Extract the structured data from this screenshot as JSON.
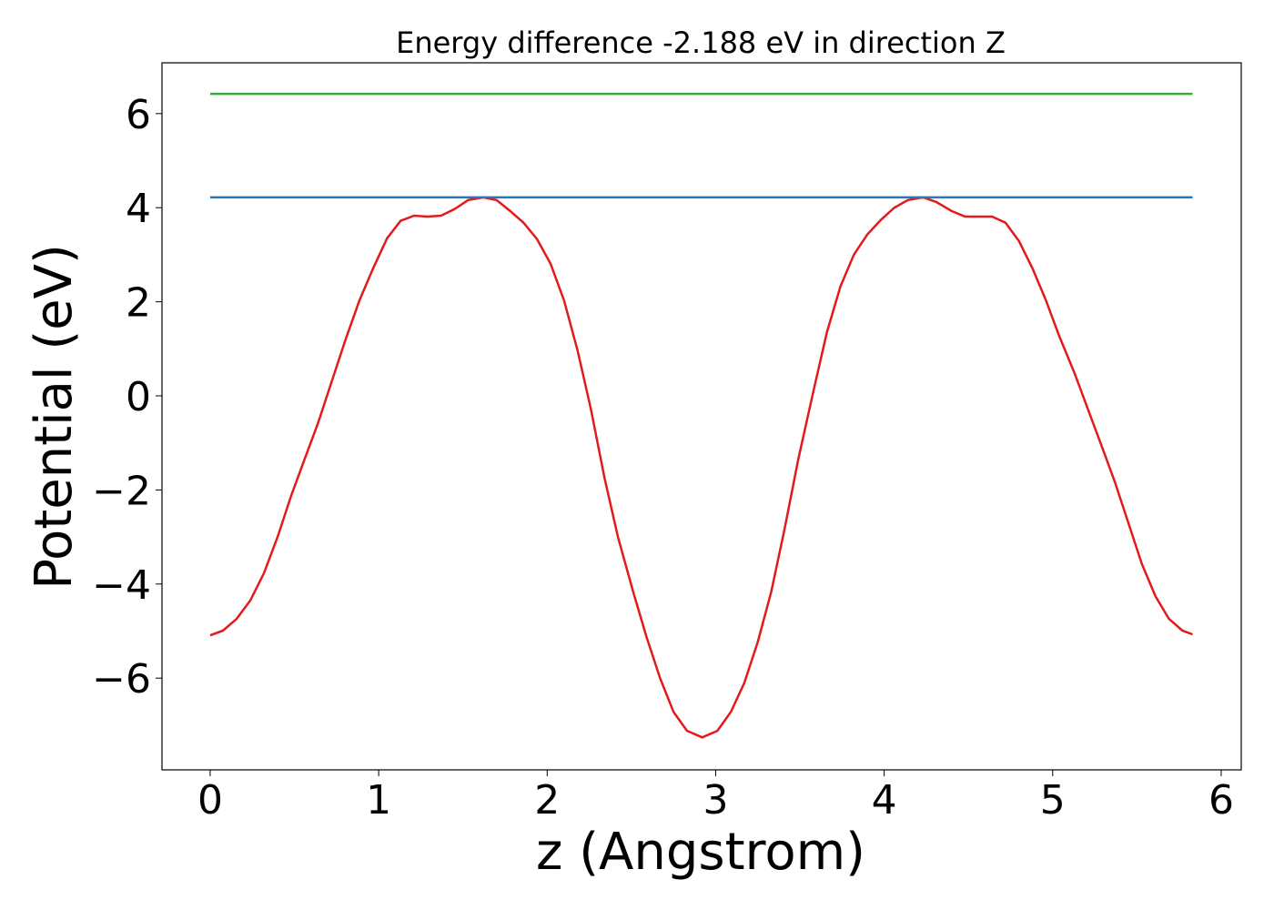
{
  "chart_data": {
    "type": "line",
    "title": "Energy difference -2.188 eV in direction Z",
    "xlabel": "z (Angstrom)",
    "ylabel": "Potential (eV)",
    "xlim": [
      -0.286,
      6.119
    ],
    "ylim": [
      -7.95,
      7.08
    ],
    "xticks": [
      0,
      1,
      2,
      3,
      4,
      5,
      6
    ],
    "yticks": [
      {
        "value": -6,
        "label": "−6"
      },
      {
        "value": -4,
        "label": "−4"
      },
      {
        "value": -2,
        "label": "−2"
      },
      0,
      2,
      4,
      6
    ],
    "series": [
      {
        "color": "#e31a1c",
        "x": [
          0,
          0.076,
          0.157,
          0.238,
          0.319,
          0.4,
          0.48,
          0.56,
          0.64,
          0.72,
          0.8,
          0.886,
          0.967,
          1.05,
          1.13,
          1.21,
          1.29,
          1.37,
          1.45,
          1.53,
          1.62,
          1.7,
          1.78,
          1.86,
          1.94,
          2.02,
          2.1,
          2.18,
          2.26,
          2.34,
          2.42,
          2.51,
          2.59,
          2.67,
          2.75,
          2.83,
          2.92,
          3.01,
          3.09,
          3.17,
          3.25,
          3.33,
          3.41,
          3.49,
          3.58,
          3.66,
          3.74,
          3.82,
          3.9,
          3.98,
          4.06,
          4.14,
          4.23,
          4.31,
          4.4,
          4.48,
          4.56,
          4.64,
          4.72,
          4.8,
          4.88,
          4.96,
          5.04,
          5.13,
          5.21,
          5.29,
          5.37,
          5.45,
          5.53,
          5.61,
          5.69,
          5.77,
          5.83
        ],
        "values": [
          -5.09,
          -4.99,
          -4.74,
          -4.35,
          -3.77,
          -3.0,
          -2.13,
          -1.35,
          -0.58,
          0.29,
          1.16,
          2.03,
          2.71,
          3.35,
          3.72,
          3.83,
          3.81,
          3.83,
          3.97,
          4.16,
          4.22,
          4.16,
          3.93,
          3.68,
          3.33,
          2.81,
          2.03,
          0.97,
          -0.29,
          -1.74,
          -3.0,
          -4.16,
          -5.13,
          -6.0,
          -6.72,
          -7.12,
          -7.26,
          -7.12,
          -6.72,
          -6.1,
          -5.23,
          -4.16,
          -2.81,
          -1.35,
          0.1,
          1.35,
          2.32,
          3.0,
          3.43,
          3.74,
          4.0,
          4.16,
          4.22,
          4.12,
          3.93,
          3.81,
          3.81,
          3.81,
          3.68,
          3.29,
          2.71,
          2.03,
          1.26,
          0.48,
          -0.29,
          -1.06,
          -1.84,
          -2.71,
          -3.58,
          -4.26,
          -4.74,
          -4.99,
          -5.07
        ]
      },
      {
        "color": "#2878b8",
        "x": [
          0,
          5.83
        ],
        "values": [
          4.22,
          4.22
        ]
      },
      {
        "color": "#3aaa3a",
        "x": [
          0,
          5.83
        ],
        "values": [
          6.42,
          6.42
        ]
      }
    ]
  }
}
